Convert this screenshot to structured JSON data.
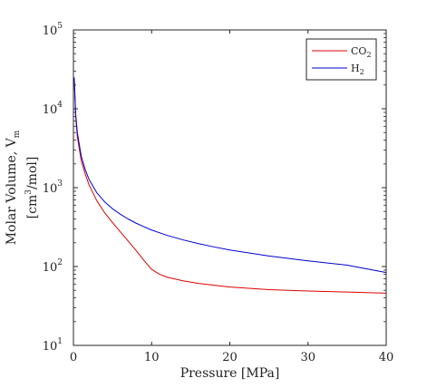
{
  "chart_data": {
    "type": "line",
    "xlabel": "Pressure [MPa]",
    "ylabel_line1_main": "Molar Volume, V",
    "ylabel_line1_sub": "m",
    "ylabel_line2_pre": "[cm",
    "ylabel_line2_sup": "3",
    "ylabel_line2_post": "/mol]",
    "xlim": [
      0,
      40
    ],
    "ylim": [
      10,
      100000
    ],
    "yscale": "log",
    "grid": false,
    "legend_position": "top-right",
    "x_ticks": [
      0,
      10,
      20,
      30,
      40
    ],
    "x_tick_labels": [
      "0",
      "10",
      "20",
      "30",
      "40"
    ],
    "y_ticks": [
      10,
      100,
      1000,
      10000,
      100000
    ],
    "y_tick_labels": [
      {
        "base": "10",
        "exp": "1"
      },
      {
        "base": "10",
        "exp": "2"
      },
      {
        "base": "10",
        "exp": "3"
      },
      {
        "base": "10",
        "exp": "4"
      },
      {
        "base": "10",
        "exp": "5"
      }
    ],
    "series": [
      {
        "name_main": "CO",
        "name_sub": "2",
        "color": "#dd0000",
        "x": [
          0.1,
          0.3,
          0.5,
          1,
          1.5,
          2,
          3,
          4,
          5,
          6,
          7,
          8,
          9,
          10,
          11,
          12,
          14,
          16,
          18,
          20,
          25,
          30,
          35,
          40
        ],
        "y": [
          24000,
          7600,
          4400,
          2200,
          1500,
          1080,
          680,
          480,
          360,
          275,
          210,
          160,
          120,
          92,
          80,
          73,
          66,
          61,
          58,
          55,
          51,
          49,
          47.5,
          46
        ]
      },
      {
        "name_main": "H",
        "name_sub": "2",
        "color": "#0000cc",
        "x": [
          0.1,
          0.3,
          0.5,
          1,
          1.5,
          2,
          3,
          4,
          5,
          6,
          7,
          8,
          9,
          10,
          12,
          14,
          16,
          18,
          20,
          25,
          30,
          35,
          40
        ],
        "y": [
          25000,
          8300,
          5000,
          2500,
          1700,
          1270,
          860,
          660,
          540,
          460,
          400,
          355,
          320,
          290,
          248,
          218,
          195,
          177,
          162,
          136,
          118,
          104,
          84
        ]
      }
    ]
  }
}
